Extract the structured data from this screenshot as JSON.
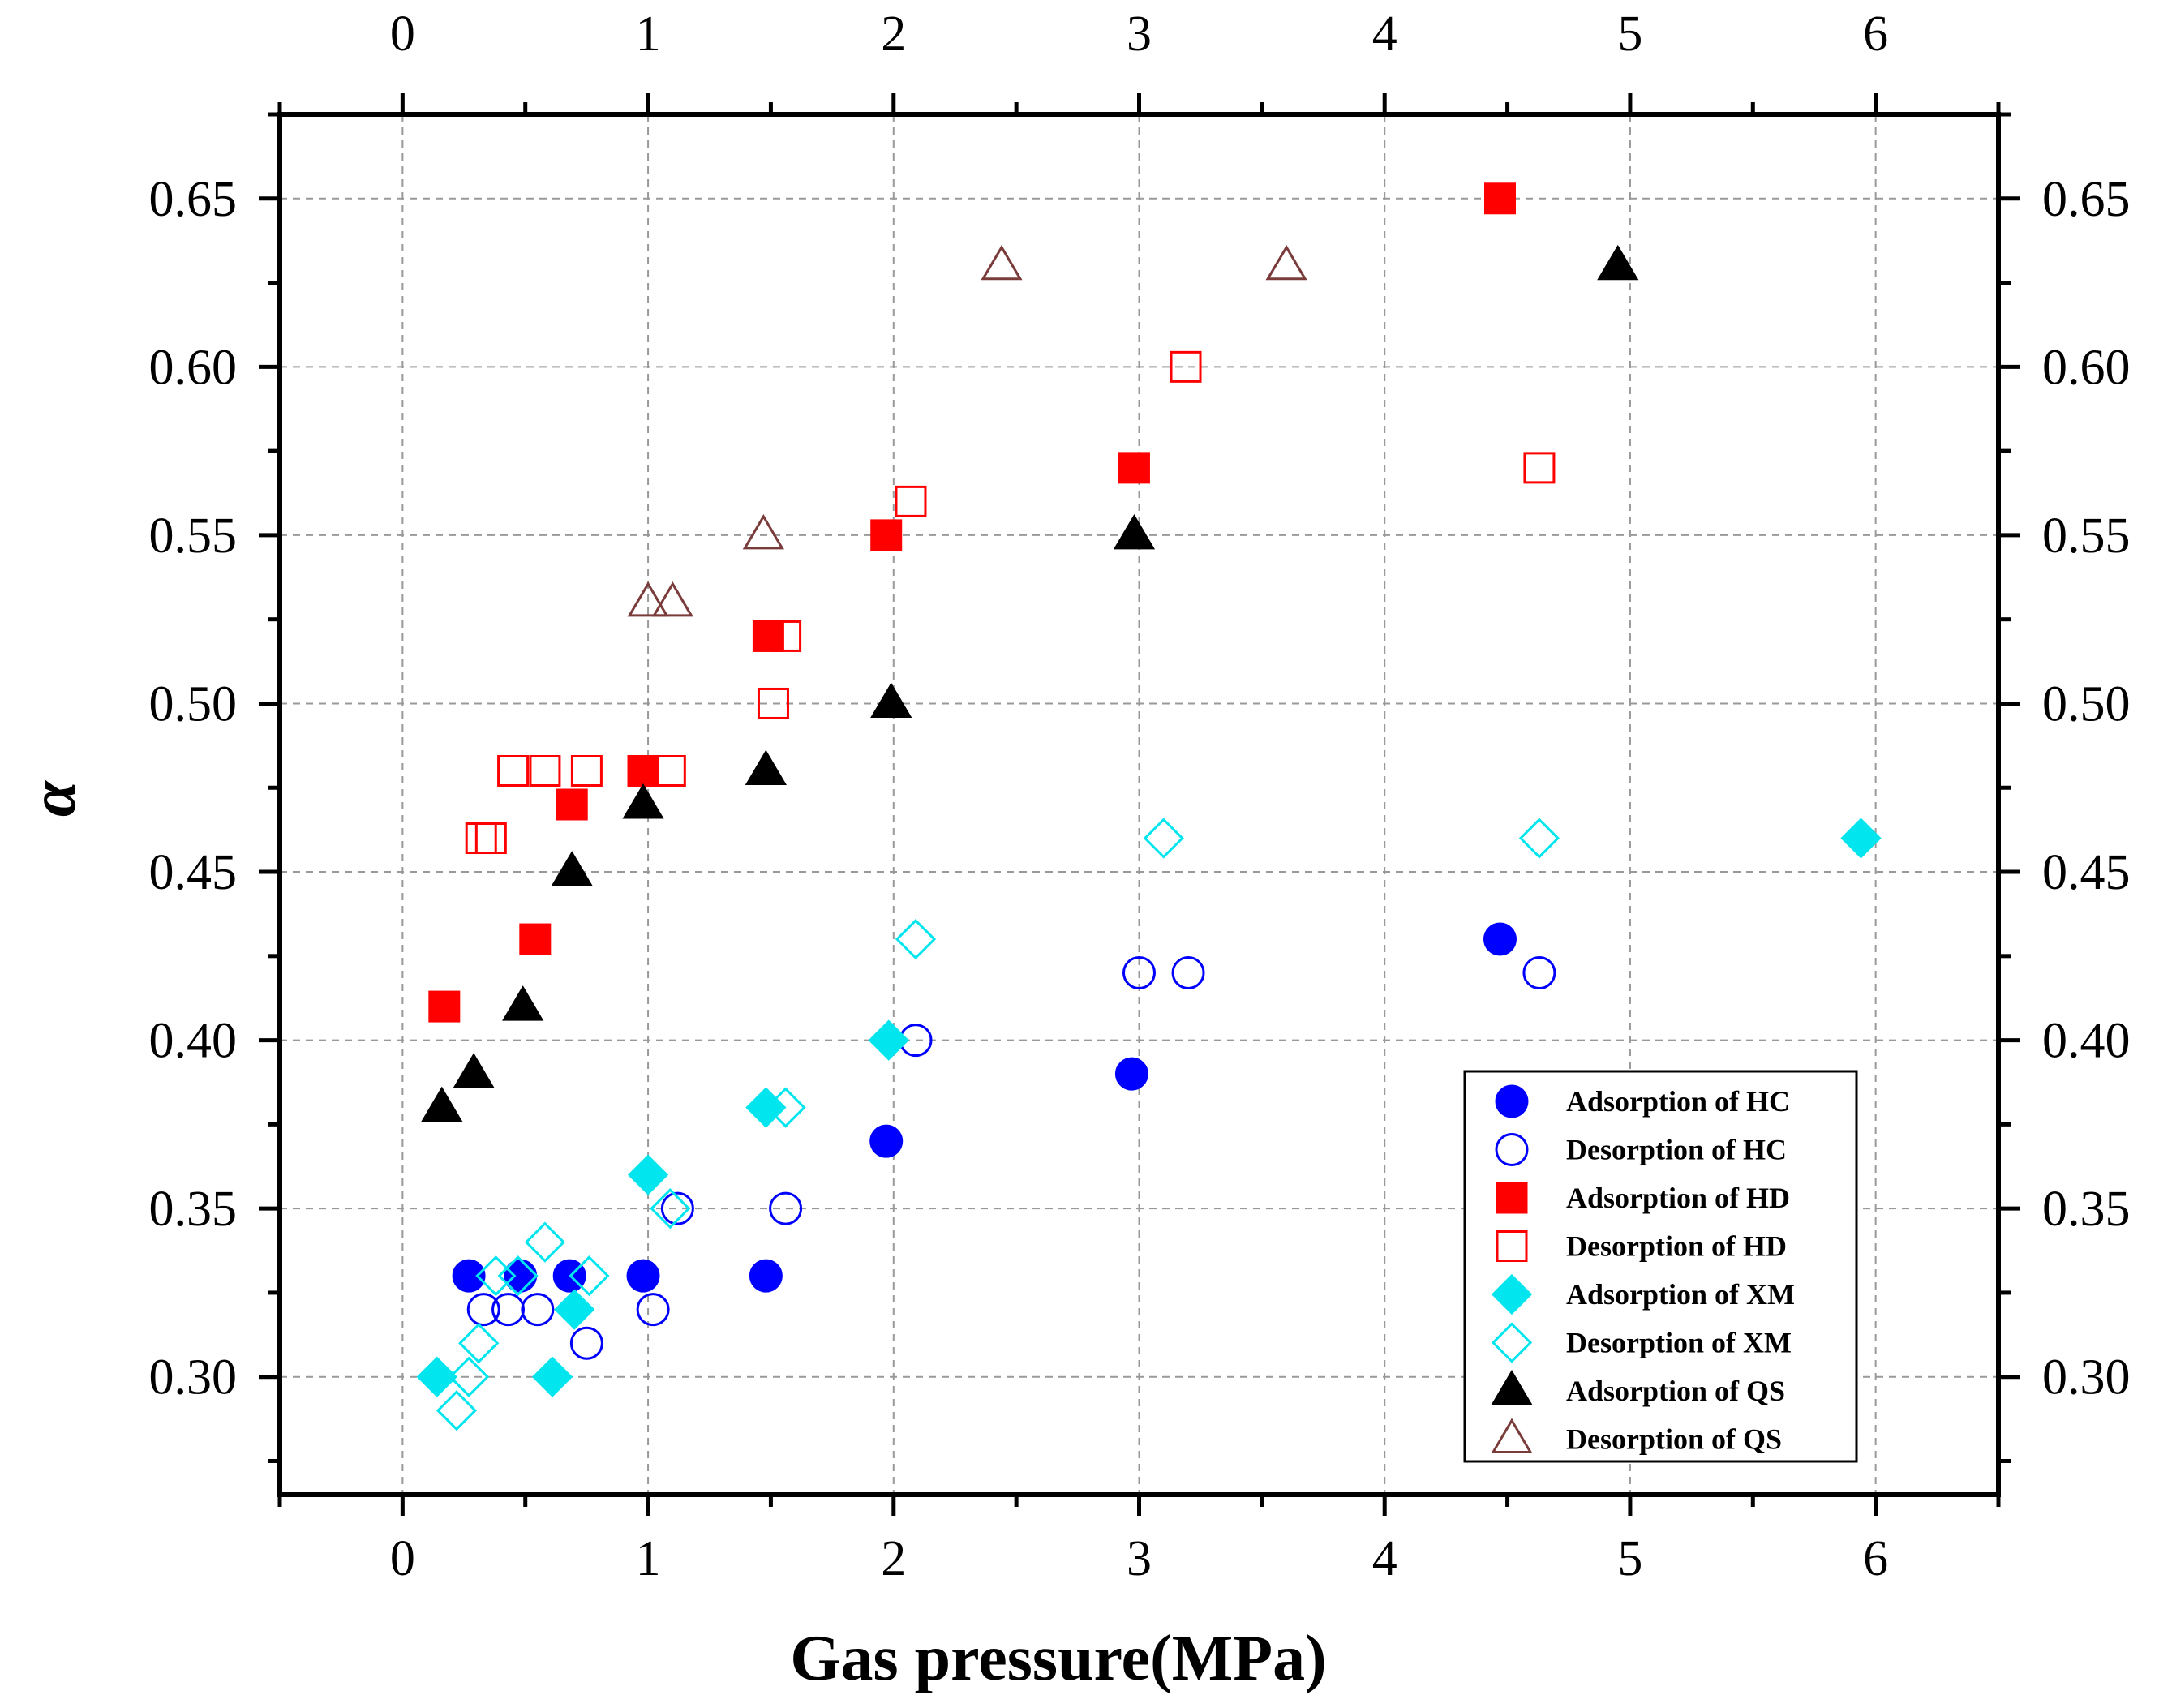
{
  "chart_data": {
    "type": "scatter",
    "title": "",
    "xlabel": "Gas pressure(MPa)",
    "ylabel": "α",
    "xlim": [
      -0.5,
      6.5
    ],
    "ylim": [
      0.265,
      0.675
    ],
    "xticks": [
      0,
      1,
      2,
      3,
      4,
      5,
      6
    ],
    "xtick_labels": [
      "0",
      "1",
      "2",
      "3",
      "4",
      "5",
      "6"
    ],
    "yticks": [
      0.3,
      0.35,
      0.4,
      0.45,
      0.5,
      0.55,
      0.6,
      0.65
    ],
    "ytick_labels": [
      "0.30",
      "0.35",
      "0.40",
      "0.45",
      "0.50",
      "0.55",
      "0.60",
      "0.65"
    ],
    "grid": true,
    "legend_position": "bottom-right",
    "series": [
      {
        "name": "Adsorption of HC",
        "marker": "circle",
        "filled": true,
        "color": "#0000ff",
        "points": [
          [
            0.27,
            0.33
          ],
          [
            0.48,
            0.33
          ],
          [
            0.68,
            0.33
          ],
          [
            0.98,
            0.33
          ],
          [
            1.48,
            0.33
          ],
          [
            1.97,
            0.37
          ],
          [
            2.97,
            0.39
          ],
          [
            4.47,
            0.43
          ]
        ]
      },
      {
        "name": "Desorption of HC",
        "marker": "circle",
        "filled": false,
        "color": "#0000ff",
        "points": [
          [
            0.33,
            0.32
          ],
          [
            0.43,
            0.32
          ],
          [
            0.55,
            0.32
          ],
          [
            0.75,
            0.31
          ],
          [
            1.02,
            0.32
          ],
          [
            1.12,
            0.35
          ],
          [
            1.56,
            0.35
          ],
          [
            2.09,
            0.4
          ],
          [
            3.0,
            0.42
          ],
          [
            3.2,
            0.42
          ],
          [
            4.63,
            0.42
          ]
        ]
      },
      {
        "name": "Adsorption of HD",
        "marker": "square",
        "filled": true,
        "color": "#ff0000",
        "points": [
          [
            0.17,
            0.41
          ],
          [
            0.54,
            0.43
          ],
          [
            0.69,
            0.47
          ],
          [
            0.98,
            0.48
          ],
          [
            1.49,
            0.52
          ],
          [
            1.97,
            0.55
          ],
          [
            2.98,
            0.57
          ],
          [
            4.47,
            0.65
          ]
        ]
      },
      {
        "name": "Desorption of HD",
        "marker": "square",
        "filled": false,
        "color": "#ff0000",
        "points": [
          [
            0.32,
            0.46
          ],
          [
            0.36,
            0.46
          ],
          [
            0.45,
            0.48
          ],
          [
            0.58,
            0.48
          ],
          [
            0.75,
            0.48
          ],
          [
            1.09,
            0.48
          ],
          [
            1.51,
            0.5
          ],
          [
            1.56,
            0.52
          ],
          [
            2.07,
            0.56
          ],
          [
            3.19,
            0.6
          ],
          [
            4.63,
            0.57
          ]
        ]
      },
      {
        "name": "Adsorption of XM",
        "marker": "diamond",
        "filled": true,
        "color": "#00e5ee",
        "points": [
          [
            0.14,
            0.3
          ],
          [
            0.61,
            0.3
          ],
          [
            0.7,
            0.32
          ],
          [
            1.0,
            0.36
          ],
          [
            1.48,
            0.38
          ],
          [
            1.98,
            0.4
          ],
          [
            5.94,
            0.46
          ]
        ]
      },
      {
        "name": "Desorption of XM",
        "marker": "diamond",
        "filled": false,
        "color": "#00e5ee",
        "points": [
          [
            0.22,
            0.29
          ],
          [
            0.27,
            0.3
          ],
          [
            0.31,
            0.31
          ],
          [
            0.38,
            0.33
          ],
          [
            0.47,
            0.33
          ],
          [
            0.58,
            0.34
          ],
          [
            0.76,
            0.33
          ],
          [
            1.09,
            0.35
          ],
          [
            1.56,
            0.38
          ],
          [
            2.09,
            0.43
          ],
          [
            3.1,
            0.46
          ],
          [
            4.63,
            0.46
          ]
        ]
      },
      {
        "name": "Adsorption of QS",
        "marker": "triangle",
        "filled": true,
        "color": "#000000",
        "points": [
          [
            0.16,
            0.38
          ],
          [
            0.29,
            0.39
          ],
          [
            0.49,
            0.41
          ],
          [
            0.69,
            0.45
          ],
          [
            0.98,
            0.47
          ],
          [
            1.48,
            0.48
          ],
          [
            1.99,
            0.5
          ],
          [
            2.98,
            0.55
          ],
          [
            4.95,
            0.63
          ]
        ]
      },
      {
        "name": "Desorption of QS",
        "marker": "triangle",
        "filled": false,
        "color": "#7a3b3b",
        "points": [
          [
            1.0,
            0.53
          ],
          [
            1.1,
            0.53
          ],
          [
            1.47,
            0.55
          ],
          [
            2.44,
            0.63
          ],
          [
            3.6,
            0.63
          ]
        ]
      }
    ]
  }
}
